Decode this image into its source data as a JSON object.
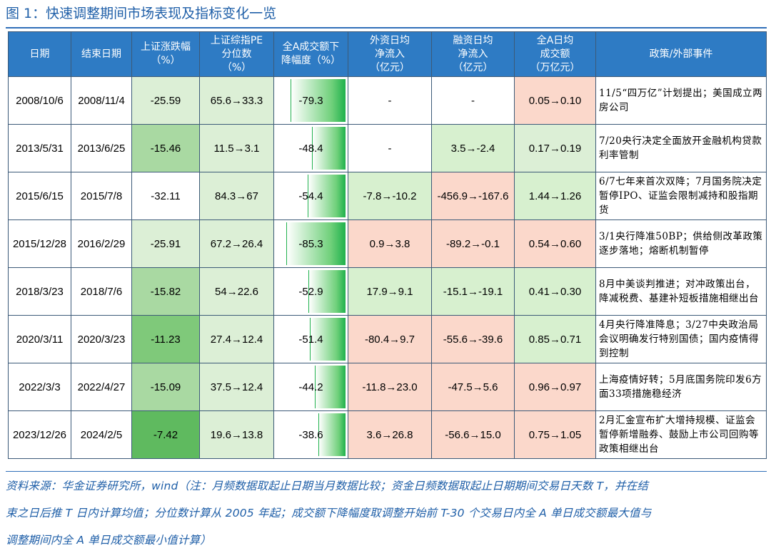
{
  "title": "图 1：快速调整期间市场表现及指标变化一览",
  "headers": [
    "日期",
    "结束日期",
    "上证涨跌幅\n（%）",
    "上证综指PE\n分位数\n（%）",
    "全A成交额下\n降幅度（%）",
    "外资日均\n净流入\n（亿元）",
    "融资日均\n净流入\n（亿元）",
    "全A日均\n成交额\n（万亿元）",
    "政策/外部事件"
  ],
  "colors": {
    "header_bg": "#2e7bc4",
    "green_light": "#dcefd6",
    "red_light": "#fbd8cb",
    "bar_green": "#1fb14c",
    "title_blue": "#1f5fa8"
  },
  "rows": [
    {
      "start": "2008/10/6",
      "end": "2008/11/4",
      "chg": "-25.59",
      "pe": "65.6→33.3",
      "vol": "-79.3",
      "vol_pct": 79.3,
      "foreign": "-",
      "margin": "-",
      "turnover": "0.05→0.10",
      "event": "11/5“四万亿”计划提出；美国成立两房公司",
      "chg_bg": "#dcefd6",
      "pe_bg": "#dcefd6",
      "foreign_bg": "#ffffff",
      "margin_bg": "#ffffff",
      "turnover_bg": "#fbd8cb"
    },
    {
      "start": "2013/5/31",
      "end": "2013/6/25",
      "chg": "-15.46",
      "pe": "11.5→3.1",
      "vol": "-48.4",
      "vol_pct": 48.4,
      "foreign": "-",
      "margin": "3.5→-2.4",
      "turnover": "0.17→0.19",
      "event": "7/20央行决定全面放开金融机构贷款利率管制",
      "chg_bg": "#a9d9a2",
      "pe_bg": "#dcefd6",
      "foreign_bg": "#ffffff",
      "margin_bg": "#d7f0cf",
      "turnover_bg": "#dcefd6"
    },
    {
      "start": "2015/6/15",
      "end": "2015/7/8",
      "chg": "-32.11",
      "pe": "84.3→67",
      "vol": "-54.4",
      "vol_pct": 54.4,
      "foreign": "-7.8→-10.2",
      "margin": "-456.9→-167.6",
      "turnover": "1.44→1.26",
      "event": "6/7七年来首次双降；7月国务院决定暂停IPO、证监会限制减持和股指期货",
      "chg_bg": "#ffffff",
      "pe_bg": "#dcefd6",
      "foreign_bg": "#d7f0cf",
      "margin_bg": "#fbd8cb",
      "turnover_bg": "#d7f0cf"
    },
    {
      "start": "2015/12/28",
      "end": "2016/2/29",
      "chg": "-25.91",
      "pe": "67.2→26.4",
      "vol": "-85.3",
      "vol_pct": 85.3,
      "foreign": "0.9→3.8",
      "margin": "-89.2→-0.1",
      "turnover": "0.54→0.60",
      "event": "3/1央行降准50BP；供给侧改革政策逐步落地；熔断机制暂停",
      "chg_bg": "#dcefd6",
      "pe_bg": "#dcefd6",
      "foreign_bg": "#fbd8cb",
      "margin_bg": "#fbd8cb",
      "turnover_bg": "#fbd8cb"
    },
    {
      "start": "2018/3/23",
      "end": "2018/7/6",
      "chg": "-15.82",
      "pe": "54→22.6",
      "vol": "-52.9",
      "vol_pct": 52.9,
      "foreign": "17.9→9.1",
      "margin": "-15.1→-19.1",
      "turnover": "0.41→0.30",
      "event": "8月中美谈判推进；对冲政策出台，降减税费、基建补短板措施相继出台",
      "chg_bg": "#a9d9a2",
      "pe_bg": "#dcefd6",
      "foreign_bg": "#d7f0cf",
      "margin_bg": "#d7f0cf",
      "turnover_bg": "#d7f0cf"
    },
    {
      "start": "2020/3/11",
      "end": "2020/3/23",
      "chg": "-11.23",
      "pe": "27.4→12.4",
      "vol": "-51.4",
      "vol_pct": 51.4,
      "foreign": "-80.4→9.7",
      "margin": "-55.6→-39.6",
      "turnover": "0.85→0.71",
      "event": "4月央行降准降息；3/27中央政治局会议明确发行特别国债；国内疫情得到控制",
      "chg_bg": "#7fc97a",
      "pe_bg": "#dcefd6",
      "foreign_bg": "#fbd8cb",
      "margin_bg": "#fbd8cb",
      "turnover_bg": "#d7f0cf"
    },
    {
      "start": "2022/3/3",
      "end": "2022/4/27",
      "chg": "-15.09",
      "pe": "37.5→12.4",
      "vol": "-44.2",
      "vol_pct": 44.2,
      "foreign": "-11.8→23.0",
      "margin": "-47.5→5.6",
      "turnover": "0.96→0.97",
      "event": "上海疫情好转；5月底国务院印发6方面33项措施稳经济",
      "chg_bg": "#a9d9a2",
      "pe_bg": "#dcefd6",
      "foreign_bg": "#fbd8cb",
      "margin_bg": "#fbd8cb",
      "turnover_bg": "#fbd8cb"
    },
    {
      "start": "2023/12/26",
      "end": "2024/2/5",
      "chg": "-7.42",
      "pe": "19.6→13.8",
      "vol": "-38.6",
      "vol_pct": 38.6,
      "foreign": "3.6→26.8",
      "margin": "-56.6→15.0",
      "turnover": "0.75→1.05",
      "event": "2月汇金宣布扩大增持规模、证监会暂停新增融券、鼓励上市公司回购等政策相继出台",
      "chg_bg": "#5fba5f",
      "pe_bg": "#dcefd6",
      "foreign_bg": "#fbd8cb",
      "margin_bg": "#fbd8cb",
      "turnover_bg": "#fbd8cb"
    }
  ],
  "footnote_lines": [
    "资料来源：华金证券研究所，wind（注：月频数据取起止日期当月数据比较；资金日频数据取起止日期期间交易日天数 T，并在结",
    "束之日后推 T 日内计算均值；分位数计算从 2005 年起；成交额下降幅度取调整开始前 T-30 个交易日内全 A 单日成交额最大值与",
    "调整期间内全 A 单日成交额最小值计算）"
  ]
}
